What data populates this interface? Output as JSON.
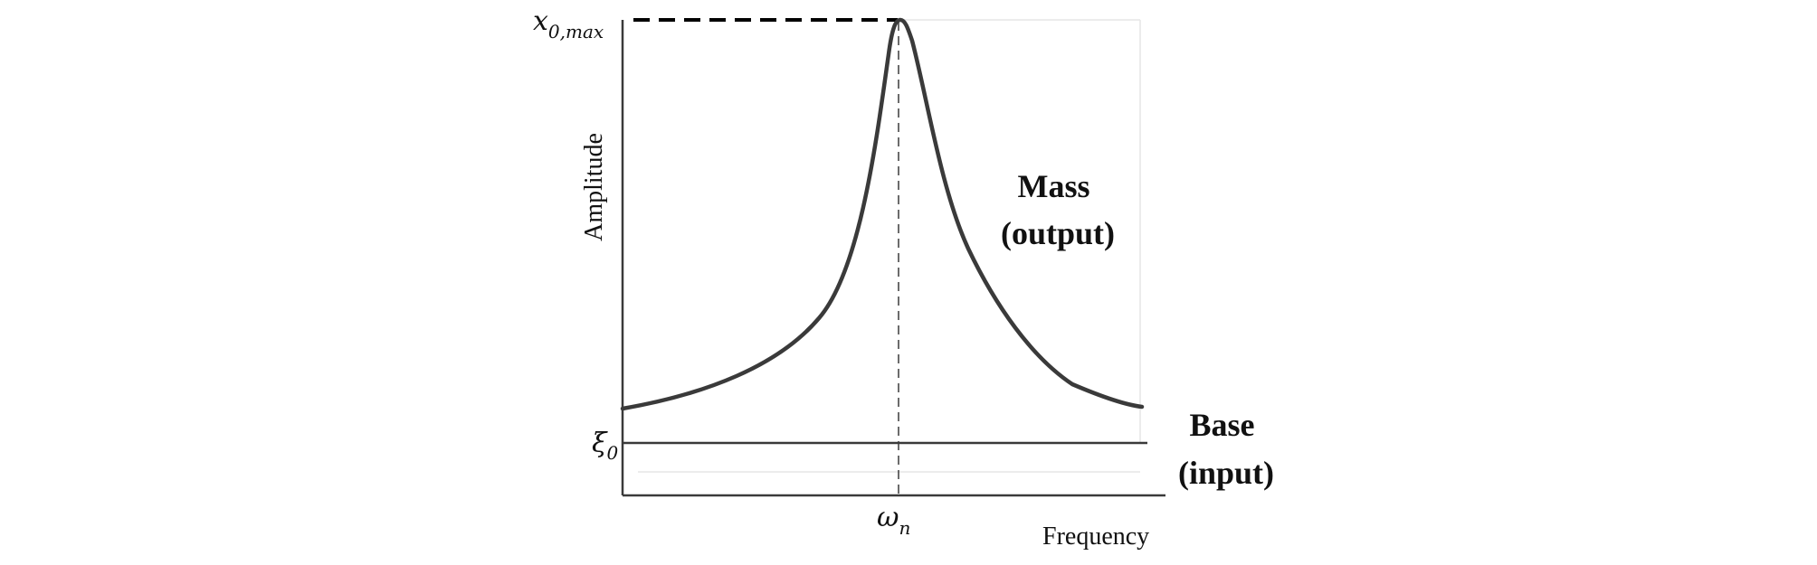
{
  "figure": {
    "y_axis_label": "Amplitude",
    "x_axis_label": "Frequency",
    "peak_label": {
      "base": "x",
      "sub": "0,max"
    },
    "base_level_label": {
      "base": "ξ",
      "sub": "0"
    },
    "natural_frequency_label": {
      "base": "ω",
      "sub": "n"
    },
    "mass_label": {
      "line1": "Mass",
      "line2": "(output)"
    },
    "base_label": {
      "line1": "Base",
      "line2": "(input)"
    },
    "colors": {
      "curve": "#3a3a3a",
      "axes": "#3a3a3a",
      "peak_dashed_line": "#000000",
      "text": "#111111"
    }
  }
}
